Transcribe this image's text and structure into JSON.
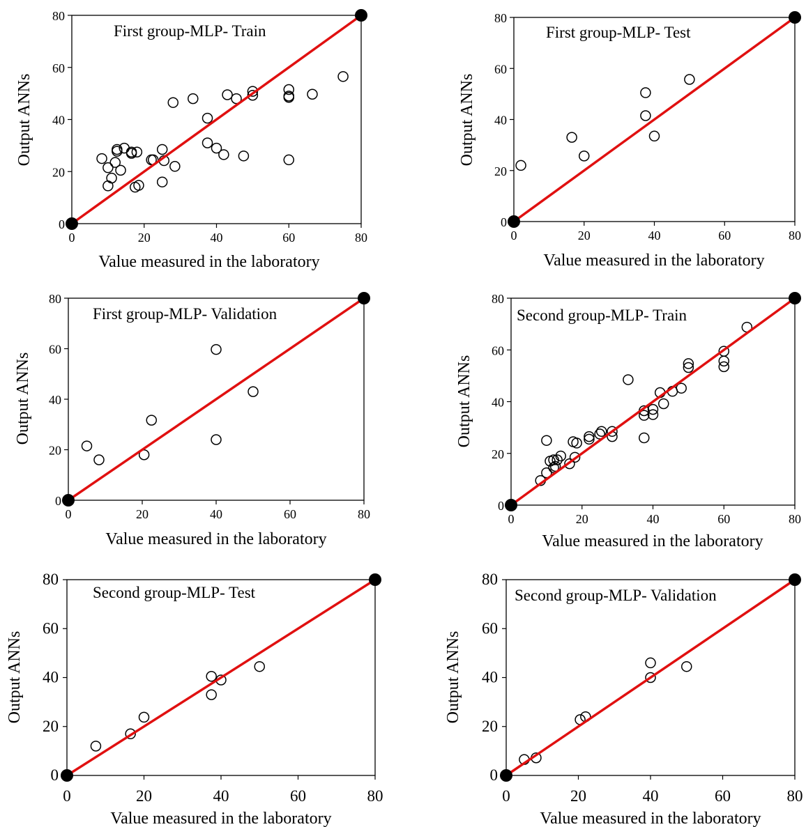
{
  "colors": {
    "line": "#e01010",
    "marker": "#000000",
    "background": "#ffffff"
  },
  "chart_data": [
    {
      "type": "scatter",
      "title": "First group-MLP- Train",
      "xlabel": "Value measured in the laboratory",
      "ylabel": "Output ANNs",
      "xlim": [
        0,
        80
      ],
      "ylim": [
        0,
        80
      ],
      "xticks": [
        "0",
        "20",
        "40",
        "60",
        "80"
      ],
      "yticks": [
        "0",
        "20",
        "40",
        "60",
        "80"
      ],
      "reference_line": [
        [
          0,
          0
        ],
        [
          80,
          80
        ]
      ],
      "points": [
        [
          8.3,
          25
        ],
        [
          10,
          21.5
        ],
        [
          10,
          14.5
        ],
        [
          11,
          17.5
        ],
        [
          12,
          23.5
        ],
        [
          12.5,
          28.5
        ],
        [
          12.5,
          27.8
        ],
        [
          13.5,
          20.5
        ],
        [
          14.5,
          29
        ],
        [
          16.5,
          27.5
        ],
        [
          16.5,
          27
        ],
        [
          17.5,
          14
        ],
        [
          18,
          27.5
        ],
        [
          18.5,
          14.7
        ],
        [
          22,
          24.5
        ],
        [
          22.5,
          24.5
        ],
        [
          25,
          28.5
        ],
        [
          25,
          16
        ],
        [
          25.5,
          24.2
        ],
        [
          28,
          46.5
        ],
        [
          28.5,
          22
        ],
        [
          33.5,
          48
        ],
        [
          37.5,
          40.5
        ],
        [
          37.5,
          31
        ],
        [
          40,
          29
        ],
        [
          42,
          26.5
        ],
        [
          43,
          49.5
        ],
        [
          45.5,
          48
        ],
        [
          47.5,
          26
        ],
        [
          50,
          50.8
        ],
        [
          50,
          49.3
        ],
        [
          60,
          51.5
        ],
        [
          60,
          49
        ],
        [
          60,
          48.5
        ],
        [
          60,
          24.5
        ],
        [
          66.5,
          49.7
        ],
        [
          75,
          56.5
        ]
      ]
    },
    {
      "type": "scatter",
      "title": "First group-MLP- Test",
      "xlabel": "Value measured in the laboratory",
      "ylabel": "Output ANNs",
      "xlim": [
        0,
        80
      ],
      "ylim": [
        0,
        80
      ],
      "xticks": [
        "0",
        "20",
        "40",
        "60",
        "80"
      ],
      "yticks": [
        "0",
        "20",
        "40",
        "60",
        "80"
      ],
      "reference_line": [
        [
          0,
          0
        ],
        [
          80,
          80
        ]
      ],
      "points": [
        [
          2,
          22
        ],
        [
          16.5,
          33
        ],
        [
          20,
          25.7
        ],
        [
          37.5,
          50.5
        ],
        [
          37.5,
          41.5
        ],
        [
          40,
          33.5
        ],
        [
          50,
          55.7
        ]
      ]
    },
    {
      "type": "scatter",
      "title": "First group-MLP- Validation",
      "xlabel": "Value measured in the laboratory",
      "ylabel": "Output ANNs",
      "xlim": [
        0,
        80
      ],
      "ylim": [
        0,
        80
      ],
      "xticks": [
        "0",
        "20",
        "40",
        "60",
        "80"
      ],
      "yticks": [
        "0",
        "20",
        "40",
        "60",
        "80"
      ],
      "reference_line": [
        [
          0,
          0
        ],
        [
          80,
          80
        ]
      ],
      "points": [
        [
          5,
          21.5
        ],
        [
          8.3,
          16
        ],
        [
          20.5,
          18
        ],
        [
          22.5,
          31.7
        ],
        [
          40,
          59.7
        ],
        [
          40,
          24
        ],
        [
          50,
          43
        ]
      ]
    },
    {
      "type": "scatter",
      "title": "Second group-MLP- Train",
      "xlabel": "Value measured in the laboratory",
      "ylabel": "Output ANNs",
      "xlim": [
        0,
        80
      ],
      "ylim": [
        0,
        80
      ],
      "xticks": [
        "0",
        "20",
        "40",
        "60",
        "80"
      ],
      "yticks": [
        "0",
        "20",
        "40",
        "60",
        "80"
      ],
      "reference_line": [
        [
          0,
          0
        ],
        [
          80,
          80
        ]
      ],
      "points": [
        [
          8.3,
          9.5
        ],
        [
          10,
          12.5
        ],
        [
          10,
          25
        ],
        [
          11,
          17
        ],
        [
          12,
          17.5
        ],
        [
          12,
          14.5
        ],
        [
          12.5,
          15
        ],
        [
          13,
          17.5
        ],
        [
          14,
          19
        ],
        [
          16.5,
          16
        ],
        [
          17.5,
          24.5
        ],
        [
          18,
          18.5
        ],
        [
          18.5,
          24
        ],
        [
          22,
          26.5
        ],
        [
          22,
          25.5
        ],
        [
          25,
          27.5
        ],
        [
          25.5,
          28.5
        ],
        [
          28.5,
          28.5
        ],
        [
          28.5,
          26.5
        ],
        [
          33,
          48.5
        ],
        [
          37.5,
          36.5
        ],
        [
          37.5,
          34.7
        ],
        [
          37.5,
          26
        ],
        [
          40,
          37
        ],
        [
          40,
          35
        ],
        [
          42,
          43.5
        ],
        [
          43,
          39.2
        ],
        [
          45.5,
          44
        ],
        [
          48,
          45.2
        ],
        [
          50,
          54.7
        ],
        [
          50,
          53.2
        ],
        [
          60,
          59.5
        ],
        [
          60,
          55.7
        ],
        [
          60,
          53.5
        ],
        [
          66.5,
          68.8
        ]
      ]
    },
    {
      "type": "scatter",
      "title": "Second group-MLP- Test",
      "xlabel": "Value measured in the laboratory",
      "ylabel": "Output ANNs",
      "xlim": [
        0,
        80
      ],
      "ylim": [
        0,
        80
      ],
      "xticks": [
        "0",
        "20",
        "40",
        "60",
        "80"
      ],
      "yticks": [
        "0",
        "20",
        "40",
        "60",
        "80"
      ],
      "reference_line": [
        [
          0,
          0
        ],
        [
          80,
          80
        ]
      ],
      "points": [
        [
          7.5,
          12
        ],
        [
          16.5,
          17
        ],
        [
          20,
          23.8
        ],
        [
          37.5,
          40.5
        ],
        [
          37.5,
          33
        ],
        [
          40,
          39
        ],
        [
          50,
          44.5
        ]
      ]
    },
    {
      "type": "scatter",
      "title": "Second group-MLP- Validation",
      "xlabel": "Value measured in the laboratory",
      "ylabel": "Output ANNs",
      "xlim": [
        0,
        80
      ],
      "ylim": [
        0,
        80
      ],
      "xticks": [
        "0",
        "20",
        "40",
        "60",
        "80"
      ],
      "yticks": [
        "0",
        "20",
        "40",
        "60",
        "80"
      ],
      "reference_line": [
        [
          0,
          0
        ],
        [
          80,
          80
        ]
      ],
      "points": [
        [
          5,
          6.5
        ],
        [
          8.3,
          7.2
        ],
        [
          20.5,
          22.8
        ],
        [
          22,
          24
        ],
        [
          40,
          46
        ],
        [
          40,
          40
        ],
        [
          50,
          44.5
        ]
      ]
    }
  ]
}
